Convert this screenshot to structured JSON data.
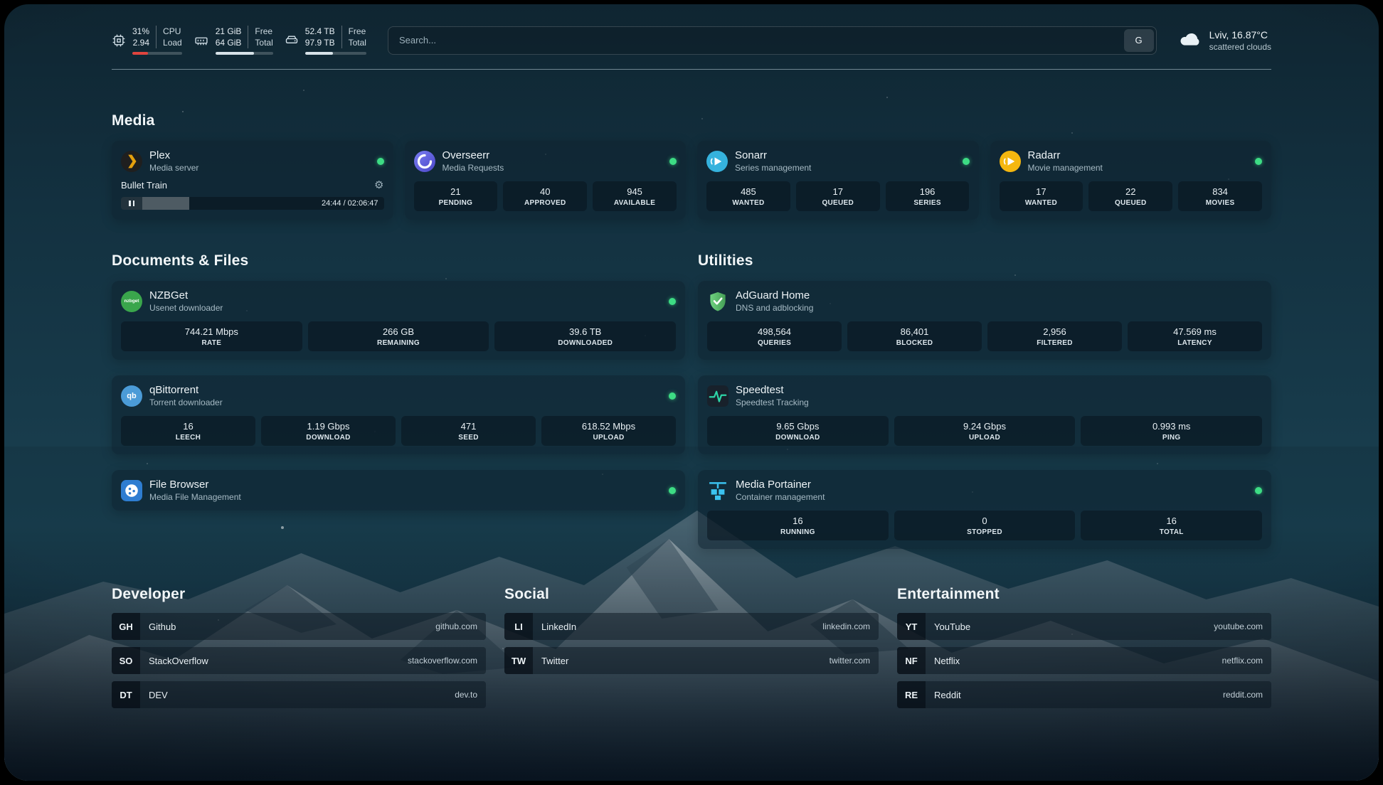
{
  "topbar": {
    "cpu": {
      "icon": "cpu-icon",
      "value_top": "31%",
      "value_bottom": "2.94",
      "label_top": "CPU",
      "label_bottom": "Load",
      "bar_percent": 31,
      "bar_color": "#e0443e"
    },
    "ram": {
      "icon": "ram-icon",
      "value_top": "21 GiB",
      "value_bottom": "64 GiB",
      "label_top": "Free",
      "label_bottom": "Total",
      "bar_percent": 67,
      "bar_color": "#d7e2e8"
    },
    "disk": {
      "icon": "disk-icon",
      "value_top": "52.4 TB",
      "value_bottom": "97.9 TB",
      "label_top": "Free",
      "label_bottom": "Total",
      "bar_percent": 46,
      "bar_color": "#d7e2e8"
    },
    "search": {
      "placeholder": "Search...",
      "provider_button": "G"
    },
    "weather": {
      "icon": "cloud-icon",
      "location": "Lviv, 16.87°C",
      "condition": "scattered clouds"
    }
  },
  "media": {
    "heading": "Media",
    "plex": {
      "icon": "plex-icon",
      "name": "Plex",
      "subtitle": "Media server",
      "status": "online",
      "status_color": "#3ddc84",
      "now_playing": "Bullet Train",
      "time": "24:44 / 02:06:47",
      "progress_percent": 19.5
    },
    "overseerr": {
      "icon": "overseerr-icon",
      "name": "Overseerr",
      "subtitle": "Media Requests",
      "status": "online",
      "stats": [
        {
          "value": "21",
          "label": "PENDING"
        },
        {
          "value": "40",
          "label": "APPROVED"
        },
        {
          "value": "945",
          "label": "AVAILABLE"
        }
      ]
    },
    "sonarr": {
      "icon": "sonarr-icon",
      "name": "Sonarr",
      "subtitle": "Series management",
      "status": "online",
      "stats": [
        {
          "value": "485",
          "label": "WANTED"
        },
        {
          "value": "17",
          "label": "QUEUED"
        },
        {
          "value": "196",
          "label": "SERIES"
        }
      ]
    },
    "radarr": {
      "icon": "radarr-icon",
      "name": "Radarr",
      "subtitle": "Movie management",
      "status": "online",
      "stats": [
        {
          "value": "17",
          "label": "WANTED"
        },
        {
          "value": "22",
          "label": "QUEUED"
        },
        {
          "value": "834",
          "label": "MOVIES"
        }
      ]
    }
  },
  "documents": {
    "heading": "Documents & Files",
    "nzbget": {
      "icon": "nzbget-icon",
      "icon_text": "nzbget",
      "name": "NZBGet",
      "subtitle": "Usenet downloader",
      "status": "online",
      "stats": [
        {
          "value": "744.21 Mbps",
          "label": "RATE"
        },
        {
          "value": "266 GB",
          "label": "REMAINING"
        },
        {
          "value": "39.6 TB",
          "label": "DOWNLOADED"
        }
      ]
    },
    "qbittorrent": {
      "icon": "qbittorrent-icon",
      "icon_text": "qb",
      "name": "qBittorrent",
      "subtitle": "Torrent downloader",
      "status": "online",
      "stats": [
        {
          "value": "16",
          "label": "LEECH"
        },
        {
          "value": "1.19 Gbps",
          "label": "DOWNLOAD"
        },
        {
          "value": "471",
          "label": "SEED"
        },
        {
          "value": "618.52 Mbps",
          "label": "UPLOAD"
        }
      ]
    },
    "filebrowser": {
      "icon": "filebrowser-icon",
      "name": "File Browser",
      "subtitle": "Media File Management",
      "status": "online"
    }
  },
  "utilities": {
    "heading": "Utilities",
    "adguard": {
      "icon": "adguard-icon",
      "name": "AdGuard Home",
      "subtitle": "DNS and adblocking",
      "stats": [
        {
          "value": "498,564",
          "label": "QUERIES"
        },
        {
          "value": "86,401",
          "label": "BLOCKED"
        },
        {
          "value": "2,956",
          "label": "FILTERED"
        },
        {
          "value": "47.569 ms",
          "label": "LATENCY"
        }
      ]
    },
    "speedtest": {
      "icon": "speedtest-icon",
      "name": "Speedtest",
      "subtitle": "Speedtest Tracking",
      "stats": [
        {
          "value": "9.65 Gbps",
          "label": "DOWNLOAD"
        },
        {
          "value": "9.24 Gbps",
          "label": "UPLOAD"
        },
        {
          "value": "0.993 ms",
          "label": "PING"
        }
      ]
    },
    "portainer": {
      "icon": "portainer-icon",
      "name": "Media Portainer",
      "subtitle": "Container management",
      "status": "online",
      "stats": [
        {
          "value": "16",
          "label": "RUNNING"
        },
        {
          "value": "0",
          "label": "STOPPED"
        },
        {
          "value": "16",
          "label": "TOTAL"
        }
      ]
    }
  },
  "links": {
    "developer": {
      "heading": "Developer",
      "items": [
        {
          "abbr": "GH",
          "label": "Github",
          "url": "github.com"
        },
        {
          "abbr": "SO",
          "label": "StackOverflow",
          "url": "stackoverflow.com"
        },
        {
          "abbr": "DT",
          "label": "DEV",
          "url": "dev.to"
        }
      ]
    },
    "social": {
      "heading": "Social",
      "items": [
        {
          "abbr": "LI",
          "label": "LinkedIn",
          "url": "linkedin.com"
        },
        {
          "abbr": "TW",
          "label": "Twitter",
          "url": "twitter.com"
        }
      ]
    },
    "entertainment": {
      "heading": "Entertainment",
      "items": [
        {
          "abbr": "YT",
          "label": "YouTube",
          "url": "youtube.com"
        },
        {
          "abbr": "NF",
          "label": "Netflix",
          "url": "netflix.com"
        },
        {
          "abbr": "RE",
          "label": "Reddit",
          "url": "reddit.com"
        }
      ]
    }
  },
  "status_color": "#3ddc84"
}
